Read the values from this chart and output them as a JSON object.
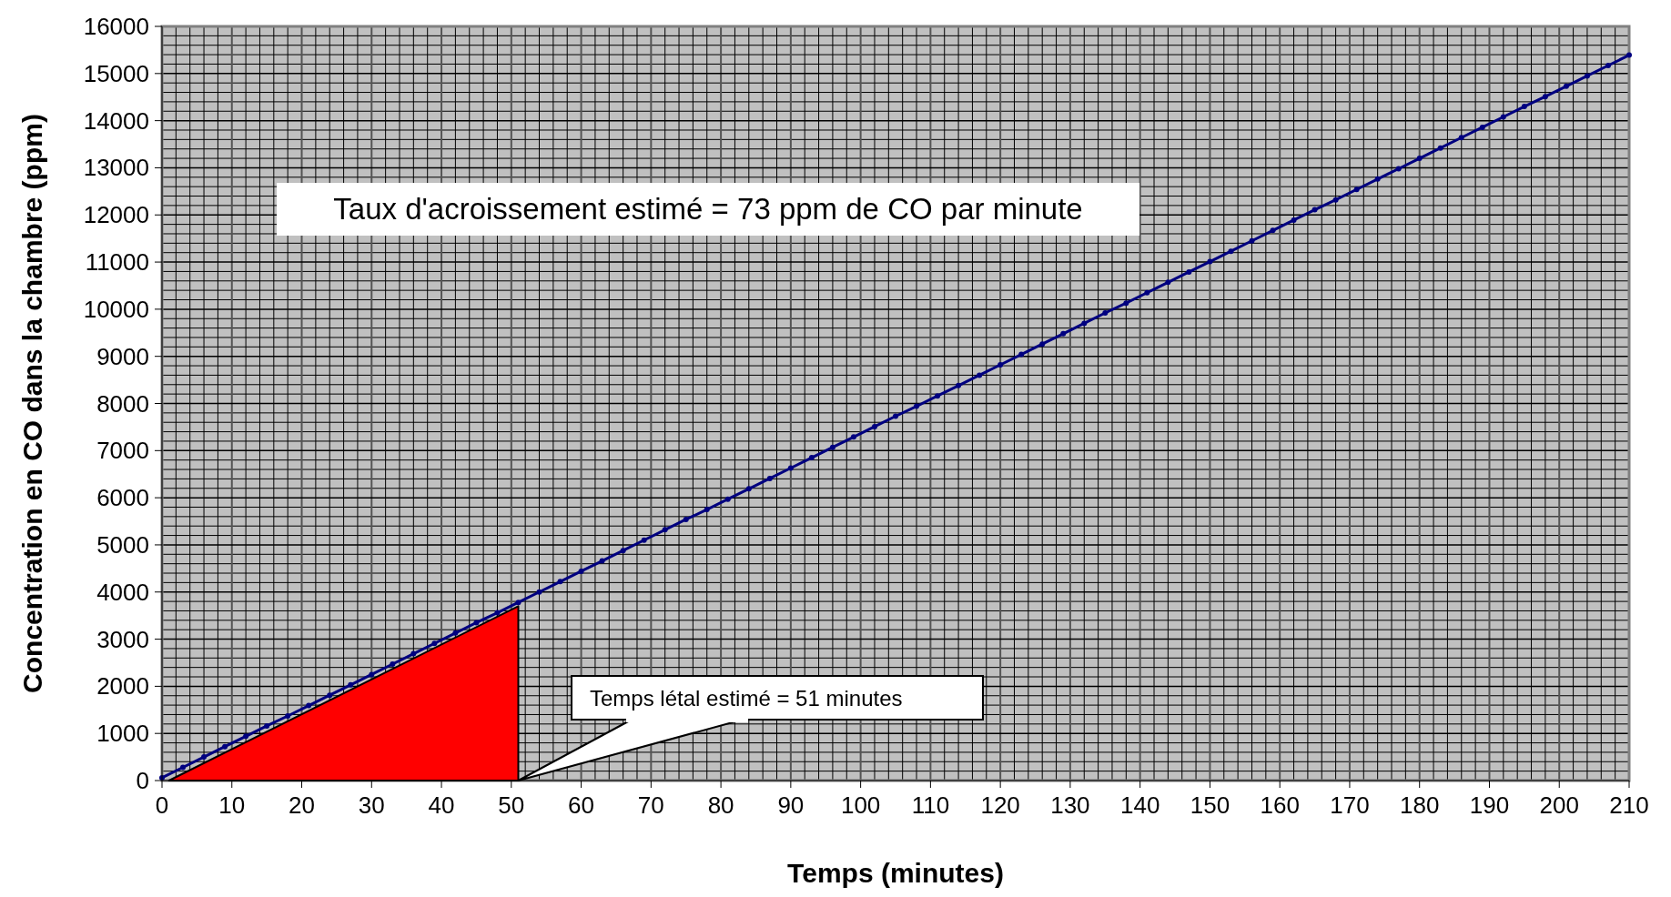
{
  "chart_data": {
    "type": "line",
    "xlabel": "Temps (minutes)",
    "ylabel": "Concentration en CO dans la chambre (ppm)",
    "xlim": [
      0,
      210
    ],
    "xticks": [
      0,
      10,
      20,
      30,
      40,
      50,
      60,
      70,
      80,
      90,
      100,
      110,
      120,
      130,
      140,
      150,
      160,
      170,
      180,
      190,
      200,
      210
    ],
    "ylim": [
      0,
      16000
    ],
    "yticks": [
      0,
      1000,
      2000,
      3000,
      4000,
      5000,
      6000,
      7000,
      8000,
      9000,
      10000,
      11000,
      12000,
      13000,
      14000,
      15000,
      16000
    ],
    "grid": true,
    "line_style": "solid",
    "series": [
      {
        "type": "area",
        "color": "#ff0000",
        "x": [
          1,
          51
        ],
        "values": [
          0,
          3700
        ]
      },
      {
        "color": "#000080",
        "marker": "circle",
        "x": [
          0,
          3,
          6,
          9,
          12,
          15,
          18,
          21,
          24,
          27,
          30,
          33,
          36,
          39,
          42,
          45,
          48,
          51,
          54,
          57,
          60,
          63,
          66,
          69,
          72,
          75,
          78,
          81,
          84,
          87,
          90,
          93,
          96,
          99,
          102,
          105,
          108,
          111,
          114,
          117,
          120,
          123,
          126,
          129,
          132,
          135,
          138,
          141,
          144,
          147,
          150,
          153,
          156,
          159,
          162,
          165,
          168,
          171,
          174,
          177,
          180,
          183,
          186,
          189,
          192,
          195,
          198,
          201,
          204,
          207,
          210
        ],
        "values": [
          60,
          280,
          500,
          720,
          940,
          1160,
          1370,
          1590,
          1810,
          2030,
          2250,
          2470,
          2690,
          2910,
          3130,
          3350,
          3560,
          3780,
          4000,
          4220,
          4440,
          4660,
          4880,
          5100,
          5320,
          5540,
          5750,
          5970,
          6190,
          6410,
          6630,
          6850,
          7070,
          7290,
          7510,
          7730,
          7940,
          8160,
          8380,
          8600,
          8820,
          9040,
          9260,
          9480,
          9700,
          9920,
          10130,
          10350,
          10570,
          10790,
          11010,
          11230,
          11450,
          11670,
          11890,
          12110,
          12320,
          12540,
          12760,
          12980,
          13200,
          13420,
          13640,
          13860,
          14080,
          14300,
          14510,
          14730,
          14950,
          15170,
          15390
        ]
      }
    ],
    "annotations": [
      "Taux d'acroissement estimé = 73 ppm de CO par minute",
      {
        "text": "Temps létal estimé = 51 minutes",
        "x": 51,
        "y": 0
      }
    ]
  }
}
